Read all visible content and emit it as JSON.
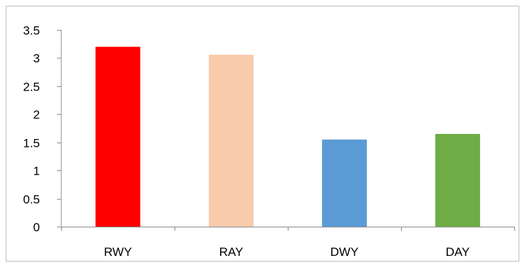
{
  "chart_data": {
    "type": "bar",
    "title": "",
    "xlabel": "",
    "ylabel": "",
    "categories": [
      "RWY",
      "RAY",
      "DWY",
      "DAY"
    ],
    "values": [
      3.2,
      3.06,
      1.55,
      1.65
    ],
    "bar_colors": [
      "#ff0000",
      "#f8cbad",
      "#5b9bd5",
      "#70ad47"
    ],
    "ylim": [
      0,
      3.5
    ],
    "y_ticks": [
      0,
      0.5,
      1,
      1.5,
      2,
      2.5,
      3,
      3.5
    ],
    "y_tick_labels": [
      "0",
      "0.5",
      "1",
      "1.5",
      "2",
      "2.5",
      "3",
      "3.5"
    ],
    "grid": false,
    "legend": "none"
  }
}
